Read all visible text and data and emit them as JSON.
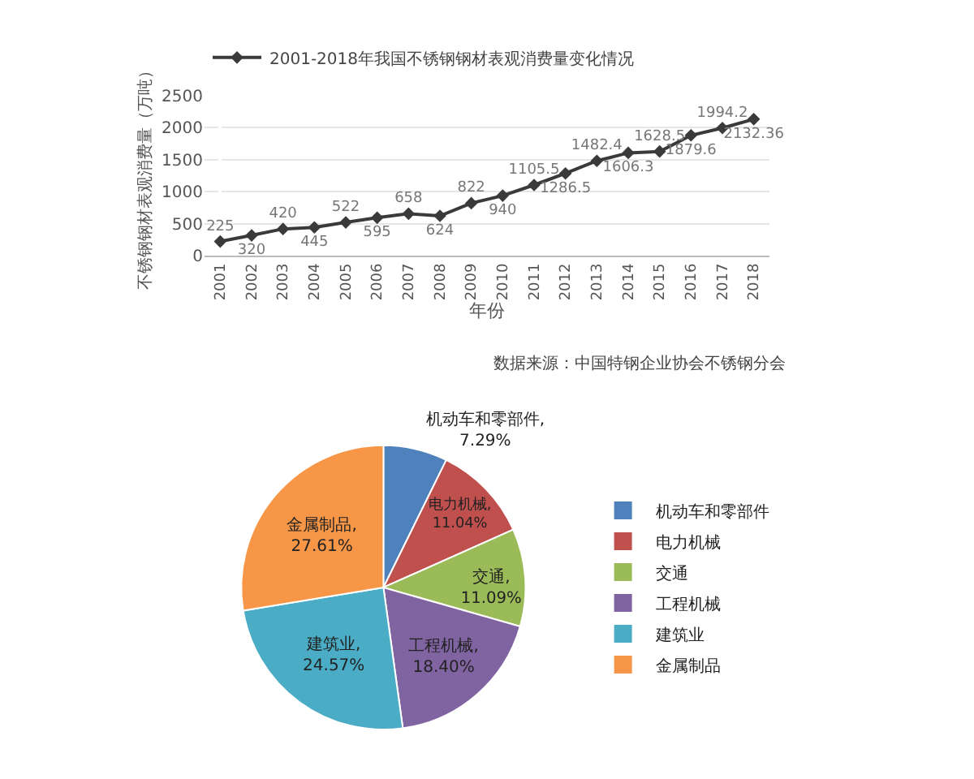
{
  "chart_data": [
    {
      "type": "line",
      "xlabel": "年份",
      "ylabel": "不锈钢钢材表观消费量（万吨）",
      "categories": [
        "2001",
        "2002",
        "2003",
        "2004",
        "2005",
        "2006",
        "2007",
        "2008",
        "2009",
        "2010",
        "2011",
        "2012",
        "2013",
        "2014",
        "2015",
        "2016",
        "2017",
        "2018"
      ],
      "series": [
        {
          "name": "2001-2018年我国不锈钢钢材表观消费量变化情况",
          "color": "#3a3a3a",
          "values": [
            225,
            320,
            420,
            445,
            522,
            595,
            658,
            624,
            822,
            940,
            1105.5,
            1286.5,
            1482.4,
            1606.3,
            1628.5,
            1879.6,
            1994.2,
            2132.36
          ]
        }
      ],
      "ylim": [
        0,
        2500
      ],
      "yticks": [
        0,
        500,
        1000,
        1500,
        2000,
        2500
      ],
      "grid": "y",
      "data_labels": true,
      "marker": "diamond",
      "line_style": "solid",
      "legend": "top left",
      "annotations": [
        "数据来源：中国特钢企业协会不锈钢分会"
      ]
    },
    {
      "type": "pie",
      "categories": [
        "机动车和零部件",
        "电力机械",
        "交通",
        "工程机械",
        "建筑业",
        "金属制品"
      ],
      "values": [
        7.29,
        11.04,
        11.09,
        18.4,
        24.57,
        27.61
      ],
      "value_labels": [
        "机动车和零部件, 7.29%",
        "电力机械, 11.04%",
        "交通, 11.09%",
        "工程机械, 18.40%",
        "建筑业, 24.57%",
        "金属制品, 27.61%"
      ],
      "colors": [
        "#4f81bd",
        "#c0504d",
        "#9bbb59",
        "#8064a2",
        "#4bacc6",
        "#f79646"
      ],
      "legend": "right"
    }
  ]
}
